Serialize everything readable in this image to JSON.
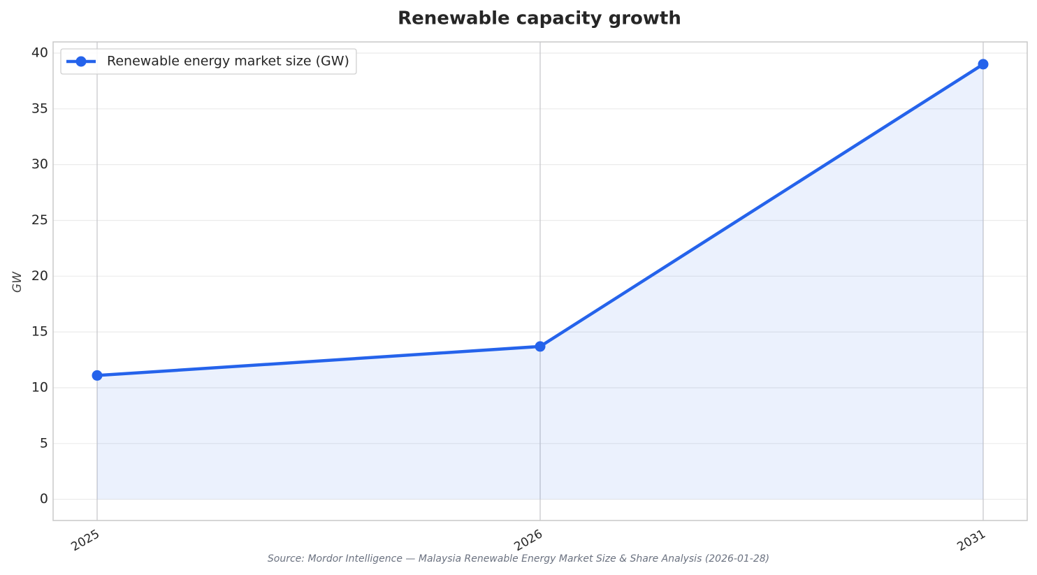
{
  "chart_data": {
    "type": "line",
    "title": "Renewable capacity growth",
    "ylabel": "GW",
    "source": "Source: Mordor Intelligence — Malaysia Renewable Energy Market Size & Share Analysis (2026-01-28)",
    "categories": [
      "2025",
      "2026",
      "2031"
    ],
    "series": [
      {
        "name": "Renewable energy market size (GW)",
        "color": "#2563eb",
        "values": [
          11.1,
          13.7,
          39
        ]
      }
    ],
    "ylim": [
      -1.9,
      41
    ],
    "yticks": [
      0,
      5,
      10,
      15,
      20,
      25,
      30,
      35,
      40
    ],
    "grid": true,
    "fill_under": true,
    "legend": "upper left"
  }
}
